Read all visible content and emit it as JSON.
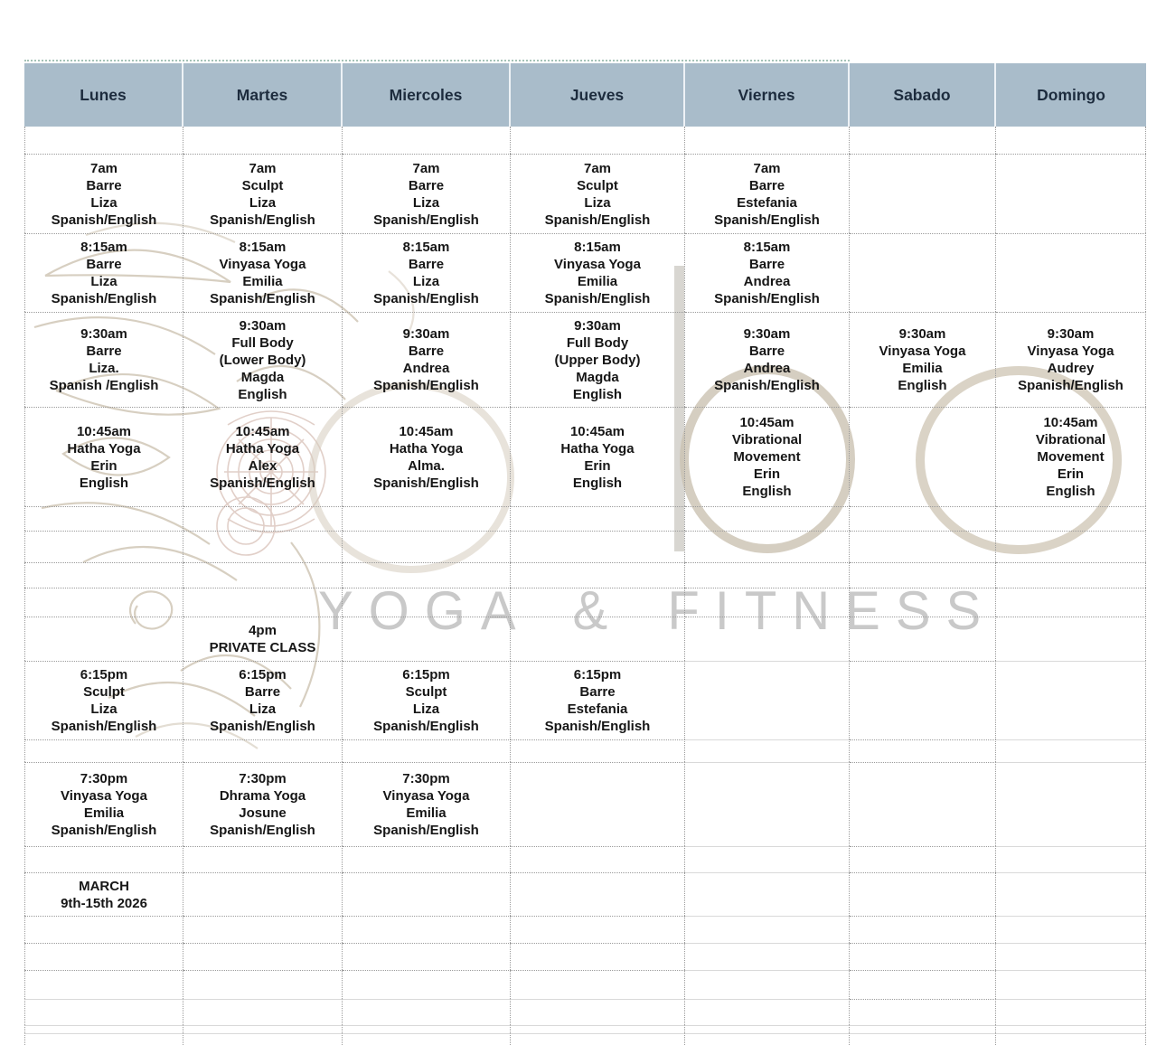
{
  "watermark": {
    "brand_text": "YOGA & FITNESS"
  },
  "colors": {
    "header_bg": "#a9bcca",
    "header_text": "#1d2c3e",
    "cell_text": "#161616",
    "grid_dotted": "#9b9b9b",
    "grid_solid": "#d9d9d9",
    "top_rule": "#8fb3a6",
    "logo_tan": "#cec5b4",
    "logo_rust": "#a5705c"
  },
  "schedule": {
    "days": [
      "Lunes",
      "Martes",
      "Miercoles",
      "Jueves",
      "Viernes",
      "Sabado",
      "Domingo"
    ],
    "rows": [
      {
        "key": "7am",
        "cells": [
          [
            "7am",
            "Barre",
            "Liza",
            "Spanish/English"
          ],
          [
            "7am",
            "Sculpt",
            "Liza",
            "Spanish/English"
          ],
          [
            "7am",
            "Barre",
            "Liza",
            "Spanish/English"
          ],
          [
            "7am",
            "Sculpt",
            "Liza",
            "Spanish/English"
          ],
          [
            "7am",
            "Barre",
            "Estefania",
            "Spanish/English"
          ],
          [],
          []
        ]
      },
      {
        "key": "8-15am",
        "cells": [
          [
            "8:15am",
            "Barre",
            "Liza",
            "Spanish/English"
          ],
          [
            "8:15am",
            "Vinyasa Yoga",
            "Emilia",
            "Spanish/English"
          ],
          [
            "8:15am",
            "Barre",
            "Liza",
            "Spanish/English"
          ],
          [
            "8:15am",
            "Vinyasa Yoga",
            "Emilia",
            "Spanish/English"
          ],
          [
            "8:15am",
            "Barre",
            "Andrea",
            "Spanish/English"
          ],
          [],
          []
        ]
      },
      {
        "key": "9-30am",
        "cells": [
          [
            "9:30am",
            "Barre",
            "Liza.",
            "Spanish /English"
          ],
          [
            "9:30am",
            "Full Body",
            "(Lower Body)",
            "Magda",
            "English"
          ],
          [
            "9:30am",
            "Barre",
            "Andrea",
            "Spanish/English"
          ],
          [
            "9:30am",
            "Full Body",
            "(Upper Body)",
            "Magda",
            "English"
          ],
          [
            "9:30am",
            "Barre",
            "Andrea",
            "Spanish/English"
          ],
          [
            "9:30am",
            "Vinyasa Yoga",
            "Emilia",
            "English"
          ],
          [
            "9:30am",
            "Vinyasa Yoga",
            "Audrey",
            "Spanish/English"
          ]
        ]
      },
      {
        "key": "10-45am",
        "cells": [
          [
            "10:45am",
            "Hatha Yoga",
            "Erin",
            "English"
          ],
          [
            "10:45am",
            "Hatha Yoga",
            "Alex",
            "Spanish/English"
          ],
          [
            "10:45am",
            "Hatha Yoga",
            "Alma.",
            "Spanish/English"
          ],
          [
            "10:45am",
            "Hatha Yoga",
            "Erin",
            "English"
          ],
          [
            "10:45am",
            "Vibrational",
            "Movement",
            "Erin",
            "English"
          ],
          [],
          [
            "10:45am",
            "Vibrational",
            "Movement",
            "Erin",
            "English"
          ]
        ]
      },
      {
        "key": "4pm",
        "cells": [
          [],
          [
            "4pm",
            "PRIVATE CLASS"
          ],
          [],
          [],
          [],
          [],
          []
        ]
      },
      {
        "key": "6-15pm",
        "cells": [
          [
            "6:15pm",
            "Sculpt",
            "Liza",
            "Spanish/English"
          ],
          [
            "6:15pm",
            "Barre",
            "Liza",
            "Spanish/English"
          ],
          [
            "6:15pm",
            "Sculpt",
            "Liza",
            "Spanish/English"
          ],
          [
            "6:15pm",
            "Barre",
            "Estefania",
            "Spanish/English"
          ],
          [],
          [],
          []
        ]
      },
      {
        "key": "7-30pm",
        "cells": [
          [
            "7:30pm",
            "Vinyasa Yoga",
            "Emilia",
            "Spanish/English"
          ],
          [
            "7:30pm",
            "Dhrama Yoga",
            "Josune",
            "Spanish/English"
          ],
          [
            "7:30pm",
            "Vinyasa Yoga",
            "Emilia",
            "Spanish/English"
          ],
          [],
          [],
          [],
          []
        ]
      },
      {
        "key": "week-label",
        "cells": [
          [
            "MARCH",
            "9th-15th 2026"
          ],
          [],
          [],
          [],
          [],
          [],
          []
        ]
      }
    ]
  }
}
